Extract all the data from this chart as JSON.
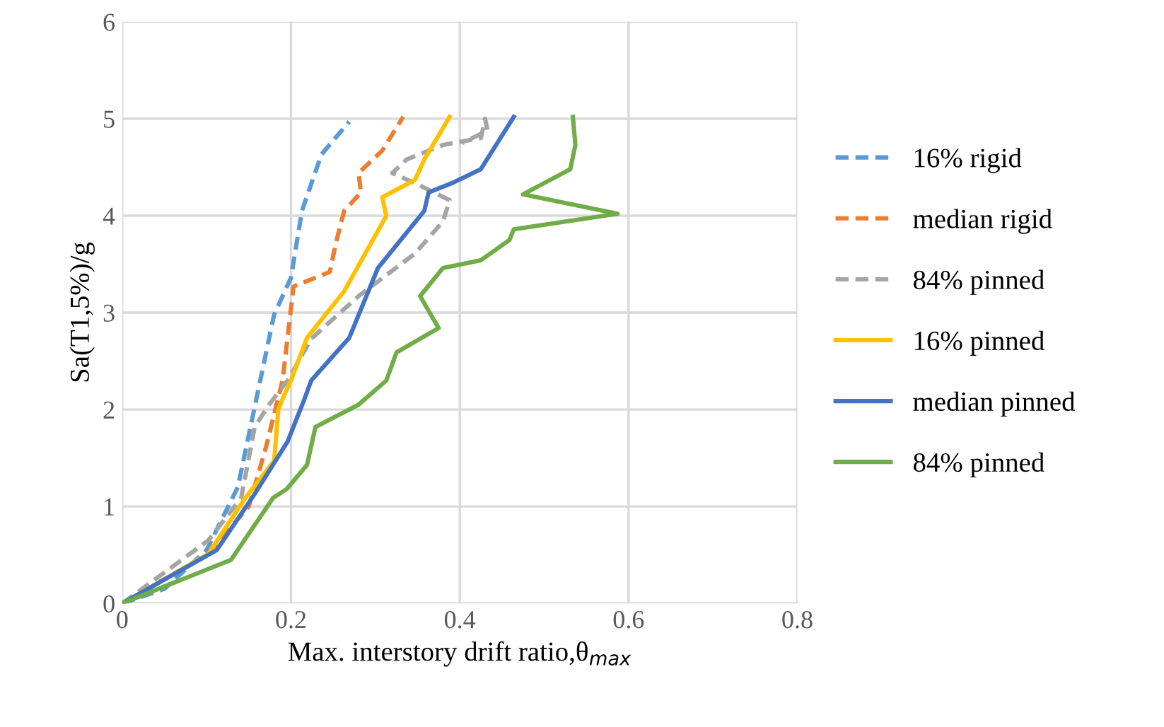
{
  "chart_data": {
    "type": "line",
    "xlabel": "Max. interstory drift ratio,θ$_{max}$",
    "ylabel": "Sa(T1,5%)/g",
    "xlim": [
      0,
      0.8
    ],
    "xticks": [
      0,
      0.2,
      0.4,
      0.6,
      0.8
    ],
    "ylim": [
      0,
      6
    ],
    "yticks": [
      0,
      1,
      2,
      3,
      4,
      5,
      6
    ],
    "grid": true,
    "legend": "right",
    "series": [
      {
        "name": "16% rigid",
        "color": "#5b9bd5",
        "line_style": "dashed",
        "x": [
          0,
          0.05,
          0.1,
          0.137,
          0.18,
          0.2,
          0.213,
          0.236,
          0.269
        ],
        "values": [
          0,
          0.15,
          0.55,
          1.2,
          2.98,
          3.36,
          4.05,
          4.63,
          4.97
        ]
      },
      {
        "name": "median rigid",
        "color": "#ed7d31",
        "line_style": "dashed",
        "x": [
          0,
          0.1,
          0.15,
          0.17,
          0.19,
          0.203,
          0.246,
          0.253,
          0.263,
          0.283,
          0.28,
          0.308,
          0.333
        ],
        "values": [
          0,
          0.5,
          1.0,
          1.6,
          2.3,
          3.27,
          3.42,
          3.71,
          4.05,
          4.24,
          4.44,
          4.67,
          5.02
        ]
      },
      {
        "name": "84% pinned",
        "color": "#a5a5a5",
        "line_style": "dashed",
        "x": [
          0,
          0.102,
          0.141,
          0.157,
          0.174,
          0.196,
          0.224,
          0.28,
          0.347,
          0.38,
          0.388,
          0.353,
          0.32,
          0.337,
          0.38,
          0.425,
          0.43,
          0.433,
          0.403
        ],
        "values": [
          0,
          0.65,
          1.09,
          1.82,
          2.05,
          2.3,
          2.73,
          3.17,
          3.61,
          3.94,
          4.16,
          4.31,
          4.44,
          4.58,
          4.73,
          4.8,
          5.0,
          4.88,
          4.75
        ]
      },
      {
        "name": "16% pinned",
        "color": "#ffc000",
        "line_style": "solid",
        "x": [
          0,
          0.102,
          0.146,
          0.18,
          0.185,
          0.19,
          0.2,
          0.219,
          0.263,
          0.313,
          0.308,
          0.347,
          0.358,
          0.388
        ],
        "values": [
          0,
          0.51,
          1.09,
          1.47,
          2.0,
          2.11,
          2.3,
          2.74,
          3.22,
          4.0,
          4.19,
          4.37,
          4.58,
          5.02
        ]
      },
      {
        "name": "median pinned",
        "color": "#4472c4",
        "line_style": "solid",
        "x": [
          0,
          0.112,
          0.157,
          0.196,
          0.216,
          0.224,
          0.269,
          0.303,
          0.358,
          0.363,
          0.392,
          0.425,
          0.464
        ],
        "values": [
          0,
          0.55,
          1.13,
          1.67,
          2.11,
          2.3,
          2.74,
          3.46,
          4.05,
          4.24,
          4.34,
          4.48,
          5.02
        ]
      },
      {
        "name": "84% pinned",
        "color": "#70ad47",
        "line_style": "solid",
        "x": [
          0,
          0.129,
          0.179,
          0.195,
          0.219,
          0.229,
          0.28,
          0.313,
          0.325,
          0.375,
          0.353,
          0.38,
          0.425,
          0.459,
          0.464,
          0.587,
          0.475,
          0.531,
          0.537,
          0.534
        ],
        "values": [
          0,
          0.45,
          1.09,
          1.18,
          1.43,
          1.82,
          2.05,
          2.3,
          2.59,
          2.84,
          3.17,
          3.46,
          3.54,
          3.75,
          3.86,
          4.02,
          4.22,
          4.48,
          4.73,
          5.02
        ]
      }
    ]
  }
}
